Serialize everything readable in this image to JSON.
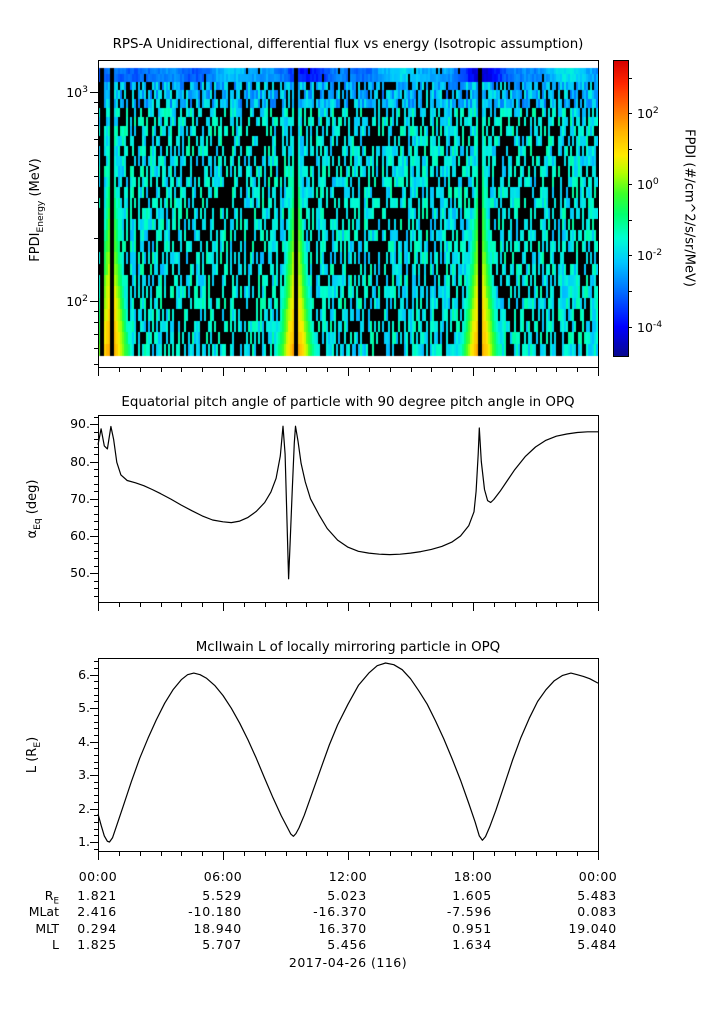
{
  "figure": {
    "bg": "#ffffff",
    "fg": "#000000"
  },
  "labels": {
    "spec_y": [
      {
        "t": "FPDI"
      },
      {
        "s": "Energy"
      },
      {
        "t": " (MeV)"
      }
    ],
    "mid_y": [
      {
        "t": "α"
      },
      {
        "s": "Eq"
      },
      {
        "t": " (deg)"
      }
    ],
    "bot_y": [
      {
        "t": "L (R"
      },
      {
        "s": "E"
      },
      {
        "t": ")"
      }
    ],
    "cbar": "FPDI (#/cm^2/s/sr/MeV)"
  },
  "xaxis": {
    "tick_hours": [
      0,
      6,
      12,
      18,
      24
    ],
    "tick_labels": [
      "00:00",
      "06:00",
      "12:00",
      "18:00",
      "00:00"
    ],
    "minor_step_hours": 1,
    "date_label": "2017-04-26 (116)"
  },
  "table": {
    "rows": [
      {
        "label": [
          {
            "t": "R"
          },
          {
            "s": "E"
          }
        ],
        "values": [
          "1.821",
          "5.529",
          "5.023",
          "1.605",
          "5.483"
        ]
      },
      {
        "label": [
          {
            "t": "MLat"
          }
        ],
        "values": [
          "2.416",
          "-10.180",
          "-16.370",
          "-7.596",
          "0.083"
        ]
      },
      {
        "label": [
          {
            "t": "MLT"
          }
        ],
        "values": [
          "0.294",
          "18.940",
          "16.370",
          "0.951",
          "19.040"
        ]
      },
      {
        "label": [
          {
            "t": "L"
          }
        ],
        "values": [
          "1.825",
          "5.707",
          "5.456",
          "1.634",
          "5.484"
        ]
      }
    ]
  },
  "chart_data": [
    {
      "type": "heatmap",
      "title": "RPS-A Unidirectional, differential flux vs energy (Isotropic assumption)",
      "x_range_hours": [
        0,
        24
      ],
      "y_axis": {
        "label": "FPDI_Energy (MeV)",
        "scale": "log",
        "data_range_mev": [
          55,
          1300
        ],
        "axis_range_mev": [
          48,
          1430
        ],
        "major_ticks": [
          {
            "value": 1000,
            "base": "10",
            "exp": "3"
          },
          {
            "value": 100,
            "base": "10",
            "exp": "2"
          }
        ],
        "minor_ticks_mev": [
          50,
          60,
          70,
          80,
          90,
          200,
          300,
          400,
          500,
          600,
          700,
          800,
          900
        ]
      },
      "colorbar": {
        "label": "FPDI (#/cm^2/s/sr/MeV)",
        "scale": "log",
        "log10_range": [
          -4.83,
          3.5
        ],
        "tick_log10": [
          -4,
          -3,
          -2,
          -1,
          0,
          1,
          2,
          3
        ],
        "labeled_ticks": [
          {
            "log10": 2,
            "base": "10",
            "exp": "2"
          },
          {
            "log10": 0,
            "base": "10",
            "exp": "0"
          },
          {
            "log10": -2,
            "base": "10",
            "exp": "-2"
          },
          {
            "log10": -4,
            "base": "10",
            "exp": "-4"
          }
        ],
        "colormap": "rainbow (dark blue -> blue -> cyan -> green -> yellow -> orange -> red)"
      },
      "features": {
        "perigee_flux_cones_hours": [
          0.65,
          9.5,
          18.35
        ],
        "data_gap_hours": [
          0.24,
          0.65,
          9.5,
          18.35
        ],
        "description": "Broad green-yellow-orange flux enhancements around each perigee pass, widest at low energy with a narrow black data-gap column at the center; elsewhere noisy cyan/blue cells with black dropouts; smooth blue-cyan band at the highest energies; white strips above ~1300 MeV and below ~55 MeV."
      }
    },
    {
      "type": "line",
      "title": "Equatorial pitch angle of particle with 90 degree pitch angle in OPQ",
      "ylabel": "α_Eq (deg)",
      "ylim": [
        42,
        92.5
      ],
      "ytick_major": [
        50,
        60,
        70,
        80,
        90
      ],
      "ytick_labels": [
        "50.",
        "60.",
        "70.",
        "80.",
        "90."
      ],
      "ytick_minor_step": 2,
      "x_hours": [
        0,
        0.15,
        0.3,
        0.45,
        0.62,
        0.75,
        0.9,
        1.1,
        1.4,
        1.8,
        2.2,
        2.6,
        3,
        3.5,
        4,
        4.5,
        5,
        5.5,
        6,
        6.4,
        6.8,
        7.2,
        7.6,
        8,
        8.3,
        8.55,
        8.75,
        8.88,
        8.98,
        9.08,
        9.15,
        9.22,
        9.32,
        9.42,
        9.48,
        9.6,
        9.75,
        9.95,
        10.2,
        10.6,
        11,
        11.5,
        12,
        12.5,
        13,
        13.5,
        14,
        14.5,
        15,
        15.5,
        16,
        16.5,
        17,
        17.4,
        17.8,
        18.05,
        18.15,
        18.25,
        18.3,
        18.4,
        18.55,
        18.7,
        18.85,
        19,
        19.3,
        19.7,
        20,
        20.5,
        21,
        21.5,
        22,
        22.5,
        23,
        23.5,
        24
      ],
      "y_deg": [
        84.5,
        88.8,
        84.2,
        83.4,
        89.4,
        86,
        79.8,
        76.4,
        74.9,
        74.3,
        73.5,
        72.5,
        71.4,
        69.9,
        68.3,
        66.8,
        65.4,
        64.3,
        63.8,
        63.6,
        64,
        65,
        66.6,
        69,
        71.8,
        75.5,
        81.5,
        89.5,
        82,
        62,
        48.5,
        58,
        72,
        85,
        89.5,
        85.5,
        79.5,
        74.5,
        70,
        65.8,
        62,
        58.9,
        57,
        55.9,
        55.4,
        55.1,
        55,
        55.1,
        55.4,
        55.8,
        56.4,
        57.2,
        58.4,
        60,
        62.8,
        66.5,
        72,
        82,
        89,
        80,
        72.5,
        69.5,
        69,
        69.8,
        72,
        75.3,
        77.8,
        81.3,
        83.9,
        85.7,
        86.8,
        87.4,
        87.8,
        88,
        88
      ]
    },
    {
      "type": "line",
      "title": "McIlwain L of locally mirroring particle in OPQ",
      "ylabel": "L (R_E)",
      "ylim": [
        0.7,
        6.5
      ],
      "ytick_major": [
        1,
        2,
        3,
        4,
        5,
        6
      ],
      "ytick_labels": [
        "1.",
        "2.",
        "3.",
        "4.",
        "5.",
        "6."
      ],
      "ytick_minor_step": 0.2,
      "x_hours": [
        0,
        0.15,
        0.3,
        0.45,
        0.55,
        0.7,
        0.9,
        1.2,
        1.6,
        2,
        2.4,
        2.8,
        3.2,
        3.6,
        4,
        4.3,
        4.6,
        4.9,
        5.2,
        5.6,
        6,
        6.4,
        6.8,
        7.2,
        7.6,
        8,
        8.4,
        8.8,
        9.1,
        9.25,
        9.38,
        9.5,
        9.65,
        9.9,
        10.3,
        10.7,
        11.1,
        11.5,
        12,
        12.5,
        13,
        13.4,
        13.8,
        14.2,
        14.6,
        15,
        15.4,
        15.8,
        16.2,
        16.6,
        17,
        17.4,
        17.8,
        18.1,
        18.3,
        18.45,
        18.6,
        18.8,
        19.1,
        19.5,
        19.9,
        20.3,
        20.7,
        21.1,
        21.5,
        21.9,
        22.3,
        22.7,
        23,
        23.3,
        23.6,
        24
      ],
      "y_L": [
        1.84,
        1.5,
        1.18,
        1.02,
        1,
        1.13,
        1.5,
        2.05,
        2.8,
        3.5,
        4.1,
        4.65,
        5.15,
        5.55,
        5.85,
        6,
        6.05,
        6,
        5.9,
        5.68,
        5.38,
        5,
        4.55,
        4.05,
        3.5,
        2.9,
        2.32,
        1.78,
        1.42,
        1.24,
        1.17,
        1.25,
        1.42,
        1.8,
        2.5,
        3.2,
        3.9,
        4.5,
        5.12,
        5.68,
        6.05,
        6.27,
        6.35,
        6.3,
        6.15,
        5.88,
        5.52,
        5.12,
        4.62,
        4.08,
        3.48,
        2.85,
        2.15,
        1.6,
        1.18,
        1.05,
        1.16,
        1.45,
        1.95,
        2.7,
        3.45,
        4.12,
        4.7,
        5.2,
        5.55,
        5.82,
        5.98,
        6.05,
        6,
        5.95,
        5.88,
        5.75
      ]
    }
  ]
}
